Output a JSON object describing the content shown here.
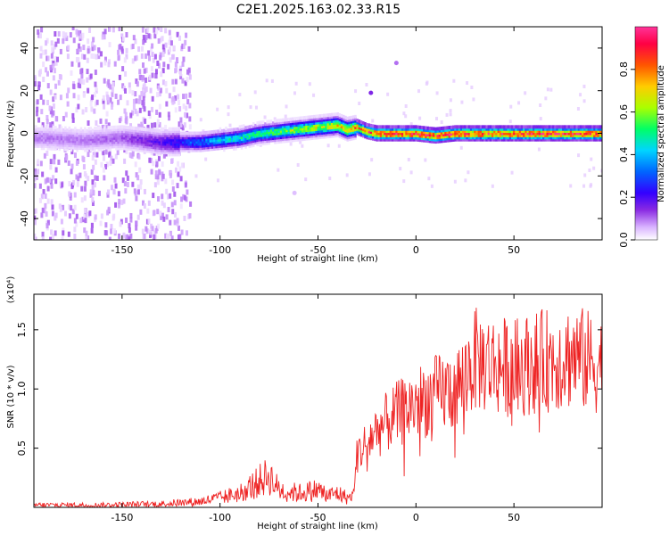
{
  "title": "C2E1.2025.163.02.33.R15",
  "chart_data": [
    {
      "type": "heatmap",
      "xlabel": "Height of straight line (km)",
      "ylabel": "Frequency (Hz)",
      "xlim": [
        -195,
        95
      ],
      "ylim": [
        -50,
        50
      ],
      "xticks": [
        -150,
        -100,
        -50,
        0,
        50
      ],
      "yticks": [
        -40,
        -20,
        0,
        20,
        40
      ],
      "colorbar": {
        "label": "Normalized spectral amplitude",
        "range": [
          0,
          1
        ],
        "ticks": [
          0.0,
          0.2,
          0.4,
          0.6,
          0.8
        ],
        "colors": [
          "#ffffff",
          "#d9b3ff",
          "#8a2be2",
          "#3300ff",
          "#0066ff",
          "#00d5ff",
          "#00ff66",
          "#aaff00",
          "#ffcc00",
          "#ff5500",
          "#ff0044",
          "#ff3399"
        ]
      },
      "ridge": {
        "x": [
          -190,
          -170,
          -150,
          -130,
          -110,
          -100,
          -90,
          -80,
          -70,
          -60,
          -50,
          -40,
          -35,
          -30,
          -25,
          -20,
          -10,
          0,
          10,
          20,
          30,
          40,
          50,
          60,
          70,
          80,
          90
        ],
        "freq": [
          -2,
          -3,
          -2,
          -4,
          -4,
          -3,
          -2,
          0,
          1,
          2,
          3,
          4,
          2,
          3,
          1,
          0,
          0,
          0,
          -1,
          0,
          0,
          0,
          0,
          0,
          0,
          0,
          0
        ],
        "amplitude": [
          0.1,
          0.1,
          0.12,
          0.2,
          0.35,
          0.45,
          0.5,
          0.55,
          0.6,
          0.65,
          0.7,
          0.75,
          0.8,
          0.85,
          0.9,
          0.92,
          0.95,
          0.95,
          0.95,
          0.95,
          0.95,
          0.95,
          0.95,
          0.95,
          0.95,
          0.95,
          0.95
        ]
      },
      "isolated_points": [
        {
          "x": -10,
          "freq": 33,
          "amplitude": 0.1
        },
        {
          "x": -23,
          "freq": 19,
          "amplitude": 0.15
        },
        {
          "x": -62,
          "freq": -28,
          "amplitude": 0.05
        }
      ]
    },
    {
      "type": "line",
      "xlabel": "Height of straight line (km)",
      "ylabel": "SNR (10 * v/v)",
      "y_multiplier": "(x10⁴)",
      "xlim": [
        -195,
        95
      ],
      "ylim": [
        0,
        1.8
      ],
      "xticks": [
        -150,
        -100,
        -50,
        0,
        50
      ],
      "yticks": [
        0.5,
        1.0,
        1.5
      ],
      "color": "#ee2222",
      "envelope": {
        "x": [
          -195,
          -160,
          -130,
          -110,
          -100,
          -90,
          -80,
          -75,
          -70,
          -60,
          -50,
          -45,
          -40,
          -35,
          -32,
          -30,
          -25,
          -20,
          -10,
          0,
          10,
          20,
          25,
          30,
          40,
          50,
          60,
          70,
          80,
          90,
          95
        ],
        "y": [
          0.02,
          0.02,
          0.03,
          0.05,
          0.08,
          0.12,
          0.22,
          0.27,
          0.15,
          0.12,
          0.15,
          0.1,
          0.12,
          0.08,
          0.1,
          0.45,
          0.55,
          0.65,
          0.78,
          0.88,
          0.95,
          1.0,
          1.1,
          1.25,
          1.2,
          1.18,
          1.22,
          1.25,
          1.28,
          1.22,
          1.2
        ]
      }
    }
  ]
}
